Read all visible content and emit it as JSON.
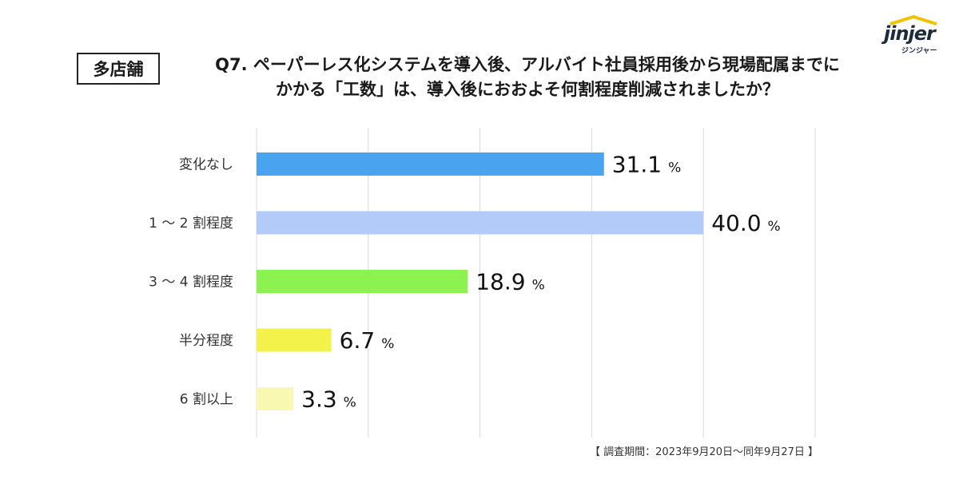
{
  "badge": "多店舗",
  "title_lines": [
    "Q7. ペーパーレス化システムを導入後、アルバイト社員採用後から現場配属までに",
    "かかる「工数」は、導入後におおよそ何割程度削減されましたか？"
  ],
  "logo": {
    "name": "jinjer",
    "sub": "ジンジャー"
  },
  "note": "【 調査期間：2023年9月20日〜同年9月27日 】",
  "chart_data": {
    "type": "bar",
    "orientation": "horizontal",
    "title": "Q7. ペーパーレス化システムを導入後、アルバイト社員採用後から現場配属までにかかる「工数」は、導入後におおよそ何割程度削減されましたか？",
    "categories": [
      "変化なし",
      "1 〜 2 割程度",
      "3 〜 4 割程度",
      "半分程度",
      "6 割以上"
    ],
    "values": [
      31.1,
      40.0,
      18.9,
      6.7,
      3.3
    ],
    "value_labels": [
      "31.1",
      "40.0",
      "18.9",
      "6.7",
      "3.3"
    ],
    "unit": "%",
    "colors": [
      "#4aa3ef",
      "#b3cbf8",
      "#8cf250",
      "#f2f24a",
      "#f8f8b0"
    ],
    "xlim": [
      0,
      50
    ],
    "gridlines": [
      0,
      10,
      20,
      30,
      40,
      50
    ],
    "grid": true,
    "xlabel": "",
    "ylabel": ""
  }
}
